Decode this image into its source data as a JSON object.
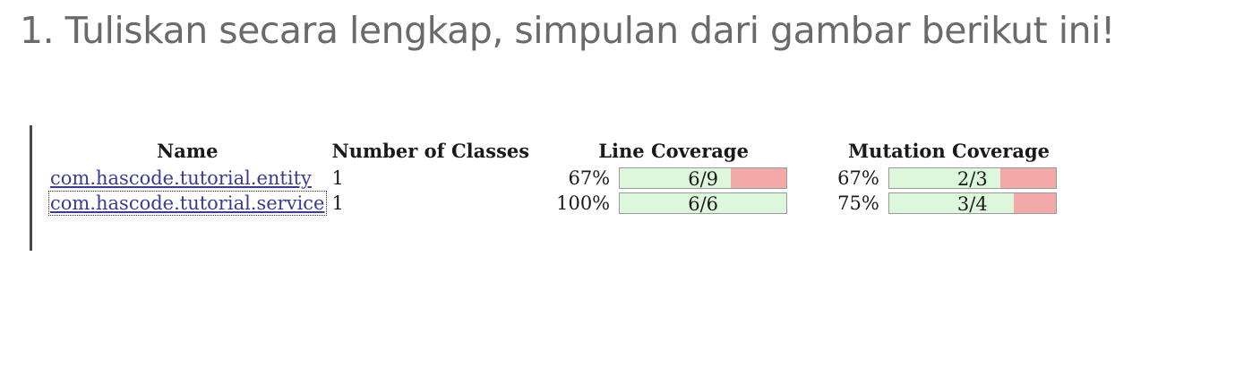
{
  "question": {
    "text": "1. Tuliskan secara lengkap, simpulan dari gambar berikut ini!"
  },
  "table": {
    "headers": {
      "name": "Name",
      "classes": "Number of Classes",
      "line": "Line Coverage",
      "mutation": "Mutation Coverage"
    },
    "rows": [
      {
        "name": "com.hascode.tutorial.entity",
        "classes": "1",
        "line_pct": "67%",
        "line_ratio": "6/9",
        "line_fraction": 0.667,
        "mutation_pct": "67%",
        "mutation_ratio": "2/3",
        "mutation_fraction": 0.667
      },
      {
        "name": "com.hascode.tutorial.service",
        "classes": "1",
        "line_pct": "100%",
        "line_ratio": "6/6",
        "line_fraction": 1.0,
        "mutation_pct": "75%",
        "mutation_ratio": "3/4",
        "mutation_fraction": 0.75
      }
    ]
  },
  "colors": {
    "covered": "#ddf7dd",
    "uncovered": "#f4a9a9"
  }
}
